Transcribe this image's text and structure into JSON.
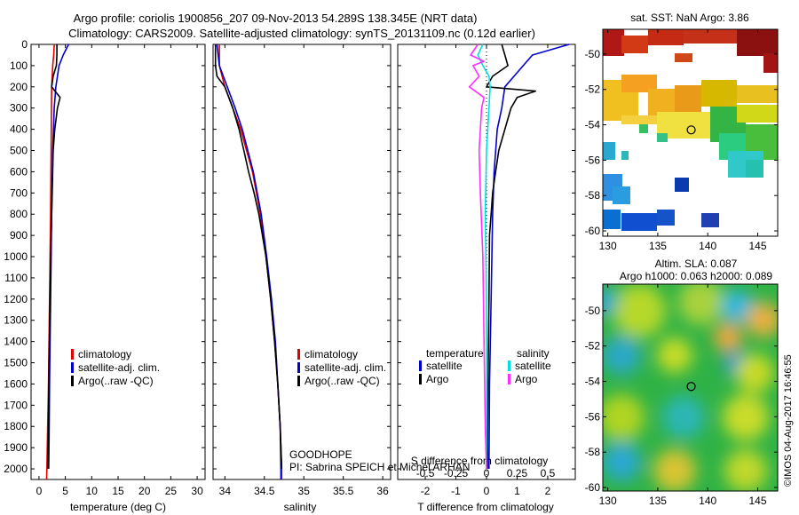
{
  "header": {
    "title_line1": "Argo profile: coriolis 1900856_207 09-Nov-2013 54.289S 138.345E (NRT data)",
    "title_line2": "Climatology: CARS2009. Satellite-adjusted climatology: synTS_20131109.nc (0.12d earlier)"
  },
  "chart_data": [
    {
      "type": "line",
      "name": "temperature-profile",
      "xlabel": "temperature (deg C)",
      "ylabel": "",
      "xlim": [
        -1.5,
        31.5
      ],
      "ylim": [
        2050,
        0
      ],
      "xticks": [
        "0",
        "5",
        "10",
        "15",
        "20",
        "25",
        "30"
      ],
      "yticks": [
        "0",
        "100",
        "200",
        "300",
        "400",
        "500",
        "600",
        "700",
        "800",
        "900",
        "1000",
        "1100",
        "1200",
        "1300",
        "1400",
        "1500",
        "1600",
        "1700",
        "1800",
        "1900",
        "2000"
      ],
      "legend": {
        "placement": "lower-center",
        "entries": [
          "climatology",
          "satellite-adj. clim.",
          "Argo(..raw -QC)"
        ]
      },
      "series": [
        {
          "name": "climatology",
          "color": "#e00000",
          "depth": [
            0,
            50,
            100,
            150,
            200,
            300,
            500,
            800,
            1200,
            1600,
            2000,
            2050
          ],
          "value": [
            2.9,
            2.8,
            2.6,
            2.5,
            2.4,
            2.35,
            2.3,
            2.2,
            2.0,
            1.8,
            1.5,
            1.45
          ]
        },
        {
          "name": "satellite-adj. clim.",
          "color": "#0000d0",
          "depth": [
            0,
            50,
            100,
            150,
            200,
            300,
            500,
            800,
            1200,
            1600,
            1900,
            2000
          ],
          "value": [
            5.6,
            4.6,
            3.8,
            3.5,
            3.2,
            2.9,
            2.6,
            2.4,
            2.2,
            2.0,
            1.9,
            1.85
          ]
        },
        {
          "name": "Argo(..raw -QC)",
          "color": "#000000",
          "depth": [
            0,
            50,
            100,
            150,
            200,
            250,
            300,
            400,
            500,
            700,
            900,
            1200,
            1500,
            1800,
            2000
          ],
          "value": [
            3.4,
            3.4,
            3.3,
            2.7,
            2.4,
            4.0,
            3.5,
            3.0,
            2.7,
            2.5,
            2.3,
            2.1,
            1.9,
            1.8,
            1.7
          ]
        }
      ]
    },
    {
      "type": "line",
      "name": "salinity-profile",
      "xlabel": "salinity",
      "xlim": [
        33.85,
        36.1
      ],
      "ylim": [
        2050,
        0
      ],
      "xticks": [
        "34",
        "34.5",
        "35",
        "35.5",
        "36"
      ],
      "legend": {
        "placement": "lower-center",
        "entries": [
          "climatology",
          "satellite-adj. clim.",
          "Argo(..raw -QC)"
        ]
      },
      "annotations": [
        "GOODHOPE",
        "PI: Sabrina SPEICH et Michel ARHAN"
      ],
      "series": [
        {
          "name": "climatology",
          "color": "#e00000",
          "depth": [
            0,
            100,
            200,
            300,
            400,
            600,
            800,
            1000,
            1200,
            1400,
            1600,
            1800,
            2000,
            2050
          ],
          "value": [
            33.93,
            33.93,
            34.0,
            34.1,
            34.2,
            34.35,
            34.45,
            34.52,
            34.58,
            34.63,
            34.67,
            34.7,
            34.72,
            34.72
          ]
        },
        {
          "name": "satellite-adj. clim.",
          "color": "#0000d0",
          "depth": [
            0,
            100,
            200,
            300,
            400,
            600,
            800,
            1000,
            1200,
            1400,
            1600,
            1800,
            2000,
            2050
          ],
          "value": [
            33.9,
            33.93,
            34.03,
            34.13,
            34.22,
            34.36,
            34.46,
            34.53,
            34.59,
            34.64,
            34.67,
            34.7,
            34.71,
            34.71
          ]
        },
        {
          "name": "Argo(..raw -QC)",
          "color": "#000000",
          "depth": [
            0,
            100,
            150,
            200,
            300,
            400,
            500,
            600,
            700,
            800,
            1000,
            1200,
            1400,
            1600,
            1800,
            2000
          ],
          "value": [
            33.88,
            33.88,
            33.9,
            34.0,
            34.1,
            34.18,
            34.24,
            34.3,
            34.37,
            34.43,
            34.52,
            34.58,
            34.63,
            34.67,
            34.7,
            34.72
          ]
        }
      ]
    },
    {
      "type": "line",
      "name": "difference-profile",
      "xlabel": "T difference from climatology",
      "xlabel_top": "S difference from climatology",
      "xlim": [
        -2.9,
        2.9
      ],
      "ylim": [
        2050,
        0
      ],
      "xticks": [
        "-2",
        "-1",
        "0",
        "1",
        "2"
      ],
      "xticks_secondary": [
        "-0.5",
        "-0.25",
        "0",
        "0.25",
        "0.5"
      ],
      "legend": {
        "placement": "lower-center",
        "columns": [
          {
            "header": "temperature",
            "entries": [
              "satellite",
              "Argo"
            ]
          },
          {
            "header": "salinity",
            "entries": [
              "satellite",
              "Argo"
            ]
          }
        ]
      },
      "series": [
        {
          "name": "temperature satellite",
          "color": "#0000d0",
          "depth": [
            0,
            50,
            100,
            150,
            200,
            300,
            400,
            600,
            800,
            1200,
            1600,
            2000
          ],
          "value": [
            2.7,
            1.5,
            1.2,
            0.9,
            0.6,
            0.5,
            0.35,
            0.25,
            0.2,
            0.15,
            0.1,
            0.08
          ]
        },
        {
          "name": "temperature Argo",
          "color": "#000000",
          "depth": [
            0,
            50,
            100,
            150,
            200,
            220,
            250,
            300,
            400,
            500,
            600,
            700,
            800,
            900,
            1200,
            1600,
            2000
          ],
          "value": [
            0.5,
            0.6,
            0.7,
            0.2,
            0.0,
            1.6,
            1.0,
            0.8,
            0.6,
            0.4,
            0.3,
            0.2,
            0.15,
            0.1,
            0.08,
            0.05,
            0.03
          ]
        },
        {
          "name": "salinity satellite",
          "color": "#00e0e0",
          "depth": [
            0,
            50,
            100,
            150,
            200,
            300,
            500,
            800,
            1200,
            1600,
            2000
          ],
          "value": [
            -0.03,
            -0.07,
            -0.03,
            0.02,
            0.03,
            0.02,
            0.0,
            -0.01,
            0.0,
            0.0,
            0.0
          ]
        },
        {
          "name": "salinity Argo",
          "color": "#ff30ff",
          "depth": [
            0,
            50,
            80,
            100,
            150,
            200,
            250,
            300,
            500,
            700,
            1000,
            1400,
            1800,
            2000
          ],
          "value": [
            -0.07,
            -0.13,
            -0.02,
            -0.11,
            -0.06,
            -0.14,
            -0.02,
            -0.04,
            -0.06,
            -0.05,
            -0.03,
            -0.02,
            -0.01,
            0.0
          ]
        }
      ]
    },
    {
      "type": "heatmap",
      "name": "sst-map",
      "title": "sat. SST: NaN Argo: 3.86",
      "xlim": [
        129.5,
        147
      ],
      "ylim": [
        -60.3,
        -48.6
      ],
      "xticks": [
        "130",
        "135",
        "140",
        "145"
      ],
      "yticks": [
        "-50",
        "-52",
        "-54",
        "-56",
        "-58",
        "-60"
      ],
      "marker": {
        "lon": 138.345,
        "lat": -54.289
      }
    },
    {
      "type": "heatmap",
      "name": "sla-map",
      "title_line1": "Altim. SLA: 0.087",
      "title_line2": "Argo h1000: 0.063 h2000: 0.089",
      "xlim": [
        129.5,
        147
      ],
      "ylim": [
        -60.2,
        -48.5
      ],
      "xticks": [
        "130",
        "135",
        "140",
        "145"
      ],
      "yticks": [
        "-50",
        "-52",
        "-54",
        "-56",
        "-58",
        "-60"
      ],
      "marker": {
        "lon": 138.345,
        "lat": -54.289
      }
    }
  ],
  "watermark": "©IMOS 04-Aug-2017 16:46:55"
}
